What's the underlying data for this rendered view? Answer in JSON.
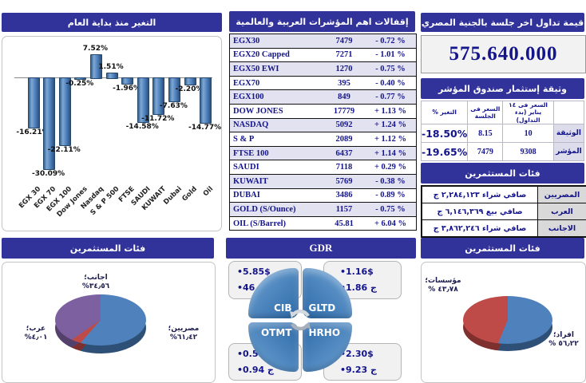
{
  "ytd": {
    "title": "التغير منذ بداية العام"
  },
  "closings": {
    "title": "إقفالات اهم المؤشرات العربية والعالمية",
    "rows": [
      {
        "name": "EGX30",
        "value": "7479",
        "change": "- 0.72 %"
      },
      {
        "name": "EGX20 Capped",
        "value": "7271",
        "change": "- 1.01 %"
      },
      {
        "name": "EGX50 EWI",
        "value": "1270",
        "change": "- 0.75 %"
      },
      {
        "name": "EGX70",
        "value": "395",
        "change": "- 0.40 %"
      },
      {
        "name": "EGX100",
        "value": "849",
        "change": "- 0.77 %"
      },
      {
        "name": "DOW JONES",
        "value": "17779",
        "change": "+ 1.13 %"
      },
      {
        "name": "NASDAQ",
        "value": "5092",
        "change": "+ 1.24 %"
      },
      {
        "name": "S & P",
        "value": "2089",
        "change": "+ 1.12 %"
      },
      {
        "name": "FTSE 100",
        "value": "6437",
        "change": "+ 1.14 %"
      },
      {
        "name": "SAUDI",
        "value": "7118",
        "change": "+ 0.29 %"
      },
      {
        "name": "KUWAIT",
        "value": "5769",
        "change": "- 0.38 %"
      },
      {
        "name": "DUBAI",
        "value": "3486",
        "change": "- 0.89 %"
      },
      {
        "name": "GOLD (S/Ounce)",
        "value": "1157",
        "change": "- 0.75 %"
      },
      {
        "name": "OIL (S/Barrel)",
        "value": "45.81",
        "change": "+ 6.04 %"
      }
    ]
  },
  "trade_value": {
    "title": "قيمة تداول اخر جلسة بالجنية المصري",
    "value": "575.640.000"
  },
  "fund_doc": {
    "title": "وثيقة إستثمار صندوق المؤشر",
    "col_start": "السعر فى ١٤ يناير (بدء التداول)",
    "col_session": "السعر فى الجلسة",
    "col_change": "التغير %",
    "rows": [
      {
        "label": "الوثيقة",
        "start": "10",
        "session": "8.15",
        "change": "-18.50%"
      },
      {
        "label": "المؤشر",
        "start": "9308",
        "session": "7479",
        "change": "-19.65%"
      }
    ]
  },
  "investor_flows": {
    "title": "فئات المستثمرين",
    "rows": [
      {
        "label": "المصريين",
        "value": "صافي شراء ٢,٢٨٤,١٢٣ ج"
      },
      {
        "label": "العرب",
        "value": "صافي بيع ٦,١٤٦,٣٦٩ ج"
      },
      {
        "label": "الاجانب",
        "value": "صافي شراء ٣,٨٦٢,٢٤٦ ج"
      }
    ]
  },
  "pie_nationality": {
    "title": "فئات المستثمرين"
  },
  "pie_type": {
    "title": "فئات المستثمرين"
  },
  "gdr": {
    "title": "GDR",
    "quadrants": [
      "CIB",
      "GLTD",
      "OTMT",
      "HRHO"
    ],
    "boxes": {
      "cib": [
        "•5.85$",
        "•46.97 ج"
      ],
      "gltd": [
        "•1.16$",
        "•1.86 ج"
      ],
      "otmt": [
        "•0.59$",
        "•0.94 ج"
      ],
      "hrho": [
        "•2.30$",
        "•9.23 ج"
      ]
    }
  },
  "colors": {
    "header_bg": "#32329B",
    "navy_text": "#14148C",
    "bar_blue": "#4F81BD",
    "pie_blue": "#4F81BD",
    "pie_red": "#BE4B48",
    "pie_purple": "#7D60A0"
  },
  "chart_data": [
    {
      "type": "bar",
      "title": "التغير منذ بداية العام",
      "categories": [
        "EGX 30",
        "EGX 70",
        "EGX 100",
        "Dow Jones",
        "Nasdaq",
        "S & P 500",
        "FTSE",
        "SAUDI",
        "KUWAIT",
        "Dubai",
        "Gold",
        "Oil"
      ],
      "values": [
        -16.21,
        -30.09,
        -22.11,
        -0.25,
        7.52,
        1.51,
        -1.96,
        -14.58,
        -11.72,
        -7.63,
        -2.2,
        -14.77
      ],
      "labels": [
        "-16.21%",
        "-30.09%",
        "-22.11%",
        "-0.25%",
        "7.52%",
        "1.51%",
        "-1.96%",
        "-14.58%",
        "-11.72%",
        "-7.63%",
        "-2.20%",
        "-14.77%"
      ],
      "xlabel": "",
      "ylabel": "",
      "ylim": [
        -32,
        10
      ],
      "grid": false,
      "legend": "none",
      "bar_color": "#4F81BD"
    },
    {
      "type": "pie",
      "title": "فئات المستثمرين",
      "slices": [
        {
          "name": "مصريين",
          "name_display": "مصريين؛",
          "pct": 61.42,
          "pct_display": "٦١٫٤٢%",
          "color": "#4F81BD",
          "side_color": "#2E5077"
        },
        {
          "name": "عرب",
          "name_display": "عرب؛",
          "pct": 4.01,
          "pct_display": "٤٫٠١%",
          "color": "#BE4B48",
          "side_color": "#7E302E"
        },
        {
          "name": "اجانب",
          "name_display": "اجانب؛",
          "pct": 34.56,
          "pct_display": "٣٤٫٥٦%",
          "color": "#7D60A0",
          "side_color": "#53406B"
        }
      ],
      "legend": "none",
      "style": "3d"
    },
    {
      "type": "pie",
      "title": "فئات المستثمرين",
      "slices": [
        {
          "name": "افراد",
          "name_display": "افراد؛",
          "pct": 56.22,
          "pct_display": "٥٦٫٢٢ %",
          "color": "#4F81BD",
          "side_color": "#2E5077"
        },
        {
          "name": "مؤسسات",
          "name_display": "مؤسسات؛",
          "pct": 43.78,
          "pct_display": "٤٣٫٧٨ %",
          "color": "#BE4B48",
          "side_color": "#7E302E"
        }
      ],
      "legend": "none",
      "style": "3d"
    }
  ]
}
